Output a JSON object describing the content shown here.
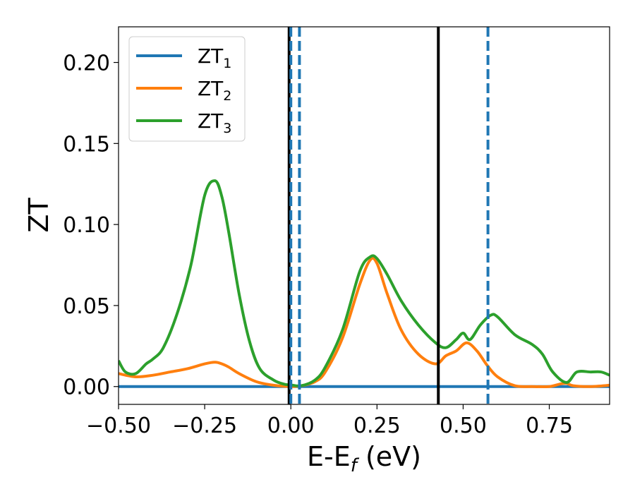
{
  "chart_data": {
    "type": "line",
    "xlabel": {
      "main": "E-E",
      "sub": "f",
      "unit": " (eV)"
    },
    "ylabel": "ZT",
    "xlim": [
      -0.5,
      0.925
    ],
    "ylim": [
      -0.011,
      0.222
    ],
    "xticks": [
      -0.5,
      -0.25,
      0.0,
      0.25,
      0.5,
      0.75
    ],
    "xtick_labels": [
      "−0.50",
      "−0.25",
      "0.00",
      "0.25",
      "0.50",
      "0.75"
    ],
    "yticks": [
      0.0,
      0.05,
      0.1,
      0.15,
      0.2
    ],
    "ytick_labels": [
      "0.00",
      "0.05",
      "0.10",
      "0.15",
      "0.20"
    ],
    "legend_position": "top-left",
    "series": [
      {
        "name": "ZT",
        "sub": "1",
        "color": "#1f77b4",
        "x": [
          -0.5,
          0.925
        ],
        "y": [
          0.0,
          0.0
        ]
      },
      {
        "name": "ZT",
        "sub": "2",
        "color": "#ff7f0e",
        "x": [
          -0.5,
          -0.45,
          -0.4,
          -0.35,
          -0.3,
          -0.25,
          -0.22,
          -0.2,
          -0.18,
          -0.15,
          -0.1,
          -0.05,
          0.0,
          0.03,
          0.07,
          0.1,
          0.15,
          0.2,
          0.23,
          0.25,
          0.28,
          0.32,
          0.37,
          0.42,
          0.45,
          0.48,
          0.51,
          0.54,
          0.57,
          0.6,
          0.65,
          0.7,
          0.75,
          0.78,
          0.8,
          0.82,
          0.87,
          0.925
        ],
        "y": [
          0.008,
          0.006,
          0.007,
          0.009,
          0.011,
          0.014,
          0.015,
          0.014,
          0.012,
          0.008,
          0.003,
          0.0008,
          0.0,
          0.0005,
          0.003,
          0.009,
          0.03,
          0.063,
          0.078,
          0.076,
          0.057,
          0.035,
          0.02,
          0.014,
          0.019,
          0.022,
          0.027,
          0.022,
          0.013,
          0.006,
          0.0005,
          0.0,
          0.0,
          0.0015,
          0.002,
          0.0005,
          0.0,
          0.0008
        ]
      },
      {
        "name": "ZT",
        "sub": "3",
        "color": "#2ca02c",
        "x": [
          -0.5,
          -0.48,
          -0.45,
          -0.42,
          -0.4,
          -0.37,
          -0.33,
          -0.29,
          -0.25,
          -0.22,
          -0.2,
          -0.18,
          -0.15,
          -0.12,
          -0.09,
          -0.05,
          -0.02,
          0.0,
          0.03,
          0.07,
          0.1,
          0.15,
          0.2,
          0.23,
          0.25,
          0.28,
          0.32,
          0.37,
          0.42,
          0.45,
          0.48,
          0.5,
          0.52,
          0.55,
          0.58,
          0.6,
          0.65,
          0.7,
          0.73,
          0.76,
          0.8,
          0.83,
          0.87,
          0.9,
          0.925
        ],
        "y": [
          0.016,
          0.009,
          0.008,
          0.014,
          0.017,
          0.024,
          0.045,
          0.075,
          0.118,
          0.127,
          0.117,
          0.095,
          0.057,
          0.028,
          0.011,
          0.004,
          0.0015,
          0.001,
          0.0005,
          0.004,
          0.012,
          0.035,
          0.071,
          0.08,
          0.079,
          0.069,
          0.053,
          0.038,
          0.027,
          0.024,
          0.029,
          0.033,
          0.029,
          0.038,
          0.044,
          0.043,
          0.032,
          0.026,
          0.02,
          0.009,
          0.0025,
          0.009,
          0.009,
          0.009,
          0.007
        ]
      }
    ],
    "vlines": [
      {
        "x": -0.005,
        "color": "#000000",
        "style": "solid"
      },
      {
        "x": 0.0,
        "color": "#1f77b4",
        "style": "dashed"
      },
      {
        "x": 0.025,
        "color": "#1f77b4",
        "style": "dashed"
      },
      {
        "x": 0.428,
        "color": "#000000",
        "style": "solid"
      },
      {
        "x": 0.572,
        "color": "#1f77b4",
        "style": "dashed"
      }
    ]
  }
}
